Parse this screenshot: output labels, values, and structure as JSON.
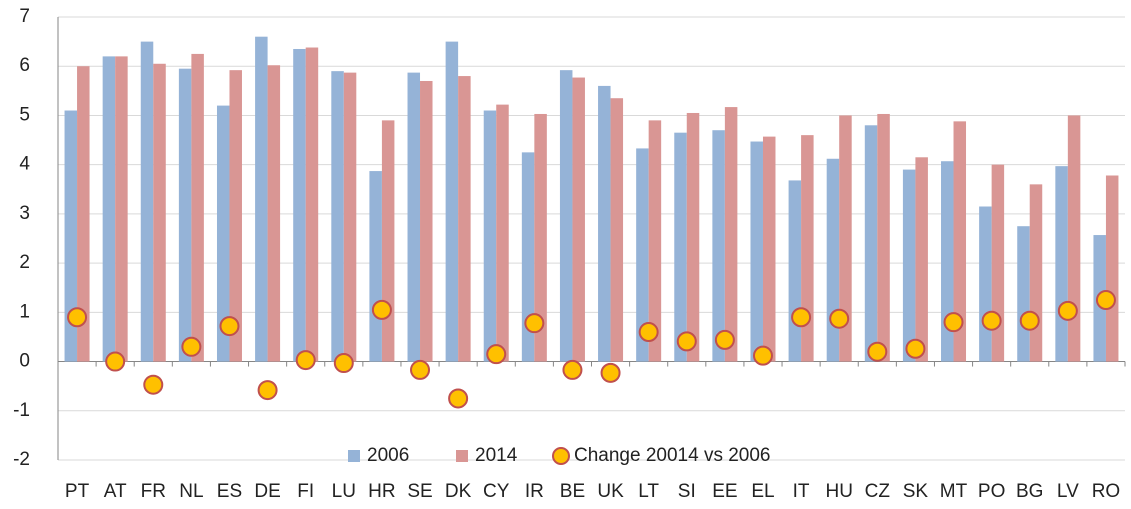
{
  "chart_data": {
    "type": "bar",
    "categories": [
      "PT",
      "AT",
      "FR",
      "NL",
      "ES",
      "DE",
      "FI",
      "LU",
      "HR",
      "SE",
      "DK",
      "CY",
      "IR",
      "BE",
      "UK",
      "LT",
      "SI",
      "EE",
      "EL",
      "IT",
      "HU",
      "CZ",
      "SK",
      "MT",
      "PO",
      "BG",
      "LV",
      "RO"
    ],
    "series": [
      {
        "name": "2006",
        "color": "#95b3d7",
        "values": [
          5.1,
          6.2,
          6.5,
          5.95,
          5.2,
          6.6,
          6.35,
          5.9,
          3.87,
          5.87,
          6.5,
          5.1,
          4.25,
          5.92,
          5.6,
          4.33,
          4.65,
          4.7,
          4.47,
          3.68,
          4.12,
          4.8,
          3.9,
          4.07,
          3.15,
          2.75,
          3.97,
          2.57
        ]
      },
      {
        "name": "2014",
        "color": "#d99694",
        "values": [
          6.0,
          6.2,
          6.05,
          6.25,
          5.92,
          6.02,
          6.38,
          5.87,
          4.9,
          5.7,
          5.8,
          5.22,
          5.03,
          5.77,
          5.35,
          4.9,
          5.05,
          5.17,
          4.57,
          4.6,
          5.0,
          5.03,
          4.15,
          4.88,
          4.0,
          3.6,
          5.0,
          3.78
        ]
      },
      {
        "name": "Change 20014 vs 2006",
        "type": "scatter",
        "color": "#ffc000",
        "edge_color": "#c0504d",
        "values": [
          0.9,
          0.0,
          -0.47,
          0.3,
          0.72,
          -0.58,
          0.03,
          -0.03,
          1.05,
          -0.17,
          -0.75,
          0.15,
          0.78,
          -0.17,
          -0.23,
          0.6,
          0.41,
          0.44,
          0.12,
          0.9,
          0.87,
          0.2,
          0.26,
          0.8,
          0.83,
          0.83,
          1.03,
          1.25
        ]
      }
    ],
    "ylim": [
      -2,
      7
    ],
    "yticks": [
      -2,
      -1,
      0,
      1,
      2,
      3,
      4,
      5,
      6,
      7
    ],
    "grid": true,
    "legend": "bottom"
  }
}
